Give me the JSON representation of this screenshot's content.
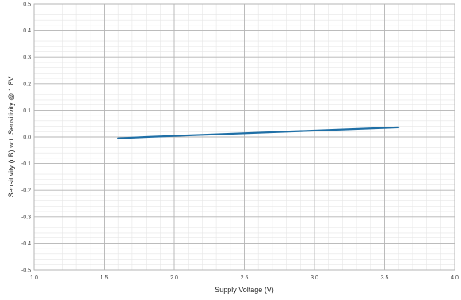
{
  "chart_data": {
    "type": "line",
    "xlabel": "Supply Voltage (V)",
    "ylabel": "Sensitivity (dB) wrt. Sensitivity @ 1.8V",
    "xlim": [
      1.0,
      4.0
    ],
    "ylim": [
      -0.5,
      0.5
    ],
    "x_ticks": [
      1.0,
      1.5,
      2.0,
      2.5,
      3.0,
      3.5,
      4.0
    ],
    "x_tick_labels": [
      "1.0",
      "1.5",
      "2.0",
      "2.5",
      "3.0",
      "3.5",
      "4.0"
    ],
    "y_ticks": [
      -0.5,
      -0.4,
      -0.3,
      -0.2,
      -0.1,
      0.0,
      0.1,
      0.2,
      0.3,
      0.4,
      0.5
    ],
    "y_tick_labels": [
      "-0.5",
      "-0.4",
      "-0.3",
      "-0.2",
      "-0.1",
      "0.0",
      "0.1",
      "0.2",
      "0.3",
      "0.4",
      "0.5"
    ],
    "grid": true,
    "minor_grid": true,
    "series": [
      {
        "color": "#1f6fa6",
        "x": [
          1.6,
          1.8,
          2.0,
          2.2,
          2.4,
          2.6,
          2.8,
          3.0,
          3.2,
          3.4,
          3.6
        ],
        "y": [
          -0.005,
          0.0,
          0.004,
          0.008,
          0.012,
          0.016,
          0.02,
          0.024,
          0.028,
          0.032,
          0.036
        ]
      }
    ]
  }
}
